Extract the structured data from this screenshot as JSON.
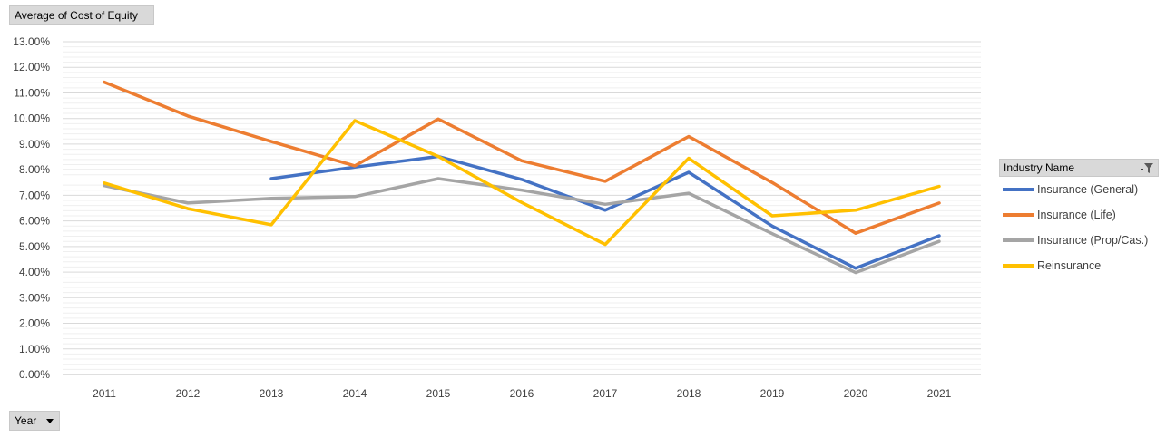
{
  "value_field": {
    "label": "Average of Cost of Equity"
  },
  "year_field": {
    "label": "Year"
  },
  "legend": {
    "title": "Industry  Name"
  },
  "colors": {
    "grid_major": "#d9d9d9",
    "grid_minor": "#efefef",
    "axis": "#bfbfbf"
  },
  "chart_data": {
    "type": "line",
    "x": [
      "2011",
      "2012",
      "2013",
      "2014",
      "2015",
      "2016",
      "2017",
      "2018",
      "2019",
      "2020",
      "2021"
    ],
    "ylim": [
      0,
      13
    ],
    "yticks": [
      "0.00%",
      "1.00%",
      "2.00%",
      "3.00%",
      "4.00%",
      "5.00%",
      "6.00%",
      "7.00%",
      "8.00%",
      "9.00%",
      "10.00%",
      "11.00%",
      "12.00%",
      "13.00%"
    ],
    "grid": "on",
    "legend_position": "right",
    "series": [
      {
        "name": "Insurance (General)",
        "color": "#4472c4",
        "values": [
          null,
          null,
          7.65,
          8.1,
          8.52,
          7.62,
          6.42,
          7.9,
          5.8,
          4.15,
          5.42
        ]
      },
      {
        "name": "Insurance (Life)",
        "color": "#ed7d31",
        "values": [
          11.42,
          10.1,
          9.1,
          8.15,
          9.98,
          8.35,
          7.55,
          9.3,
          7.5,
          5.52,
          6.7
        ]
      },
      {
        "name": "Insurance (Prop/Cas.)",
        "color": "#a5a5a5",
        "values": [
          7.38,
          6.7,
          6.88,
          6.95,
          7.65,
          7.2,
          6.65,
          7.08,
          5.5,
          3.98,
          5.2
        ]
      },
      {
        "name": "Reinsurance",
        "color": "#ffc000",
        "values": [
          7.48,
          6.48,
          5.85,
          9.92,
          8.52,
          6.72,
          5.08,
          8.45,
          6.2,
          6.42,
          7.35
        ]
      }
    ]
  }
}
